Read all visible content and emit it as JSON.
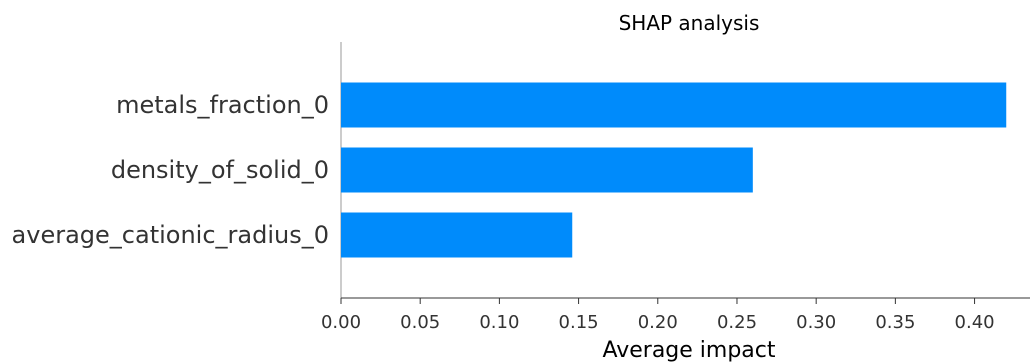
{
  "chart_data": {
    "type": "bar",
    "orientation": "horizontal",
    "title": "SHAP analysis",
    "xlabel": "Average impact",
    "ylabel": "",
    "categories": [
      "metals_fraction_0",
      "density_of_solid_0",
      "average_cationic_radius_0"
    ],
    "values": [
      0.42,
      0.26,
      0.146
    ],
    "xlim": [
      0,
      0.435
    ],
    "xticks": [
      "0.00",
      "0.05",
      "0.10",
      "0.15",
      "0.20",
      "0.25",
      "0.30",
      "0.35",
      "0.40"
    ],
    "grid": false,
    "legend": "none",
    "colors": {
      "bar": "#008bfb"
    }
  }
}
